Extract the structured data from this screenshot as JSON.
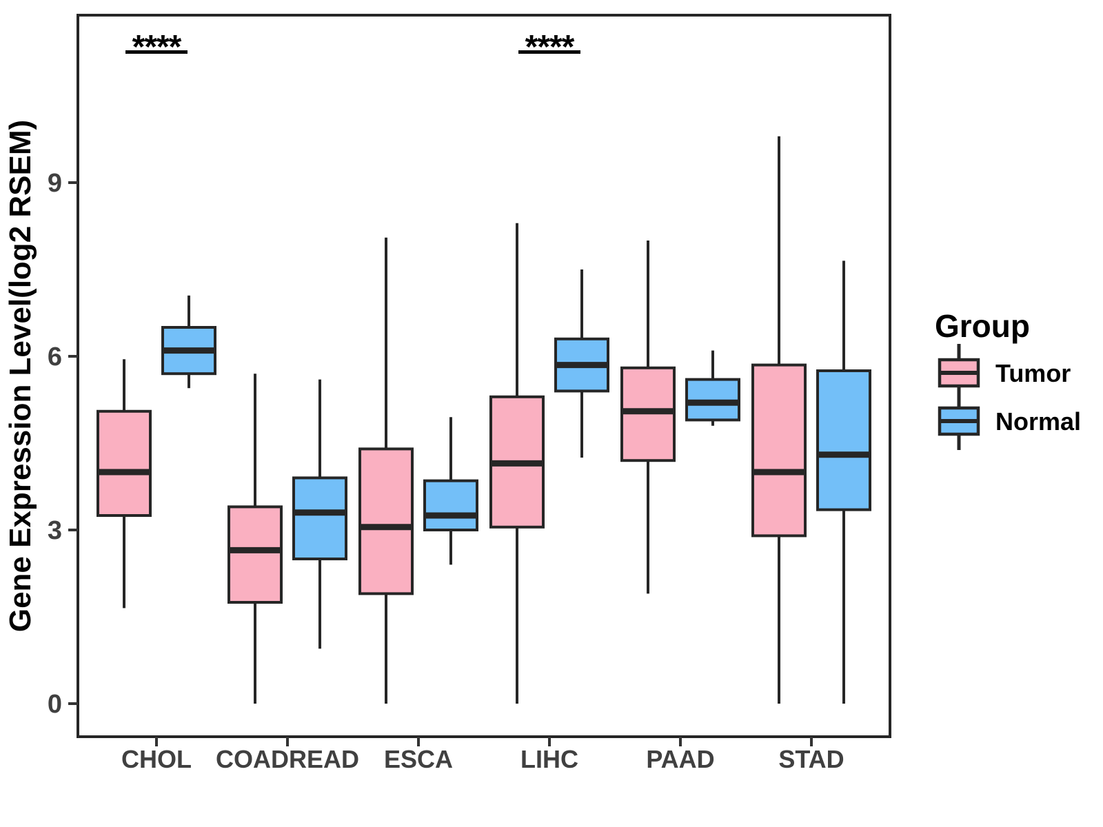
{
  "figure": {
    "background": "#FFFFFF",
    "panel_border_color": "#262626",
    "axis_text_color": "#404040",
    "axis_title_color": "#000000"
  },
  "chart_data": {
    "type": "boxplot",
    "title": "",
    "xlabel": "",
    "ylabel": "Gene Expression Level(log2 RSEM)",
    "categories": [
      "CHOL",
      "COADREAD",
      "ESCA",
      "LIHC",
      "PAAD",
      "STAD"
    ],
    "yticks": [
      0,
      3,
      6,
      9
    ],
    "ylim": [
      -0.6,
      11.9
    ],
    "grid": false,
    "box_stats_order": [
      "min",
      "q1",
      "median",
      "q3",
      "max"
    ],
    "series": [
      {
        "name": "Tumor",
        "fill": "#FAB0C1",
        "boxes": {
          "CHOL": [
            1.65,
            3.25,
            4.0,
            5.05,
            5.95
          ],
          "COADREAD": [
            0.0,
            1.75,
            2.65,
            3.4,
            5.7
          ],
          "ESCA": [
            0.0,
            1.9,
            3.05,
            4.4,
            8.05
          ],
          "LIHC": [
            0.0,
            3.05,
            4.15,
            5.3,
            8.3
          ],
          "PAAD": [
            1.9,
            4.2,
            5.05,
            5.8,
            8.0
          ],
          "STAD": [
            0.0,
            2.9,
            4.0,
            5.85,
            9.8
          ]
        }
      },
      {
        "name": "Normal",
        "fill": "#73BFF8",
        "boxes": {
          "CHOL": [
            5.45,
            5.7,
            6.1,
            6.5,
            7.05
          ],
          "COADREAD": [
            0.95,
            2.5,
            3.3,
            3.9,
            5.6
          ],
          "ESCA": [
            2.4,
            3.0,
            3.25,
            3.85,
            4.95
          ],
          "LIHC": [
            4.25,
            5.4,
            5.85,
            6.3,
            7.5
          ],
          "PAAD": [
            4.8,
            4.9,
            5.2,
            5.6,
            6.1
          ],
          "STAD": [
            0.0,
            3.35,
            4.3,
            5.75,
            7.65
          ]
        }
      }
    ],
    "significance": [
      {
        "category": "CHOL",
        "label": "****"
      },
      {
        "category": "LIHC",
        "label": "****"
      }
    ],
    "legend": {
      "title": "Group",
      "position": "right",
      "items": [
        {
          "label": "Tumor",
          "fill": "#FAB0C1"
        },
        {
          "label": "Normal",
          "fill": "#73BFF8"
        }
      ]
    },
    "stroke_color": "#262626"
  }
}
